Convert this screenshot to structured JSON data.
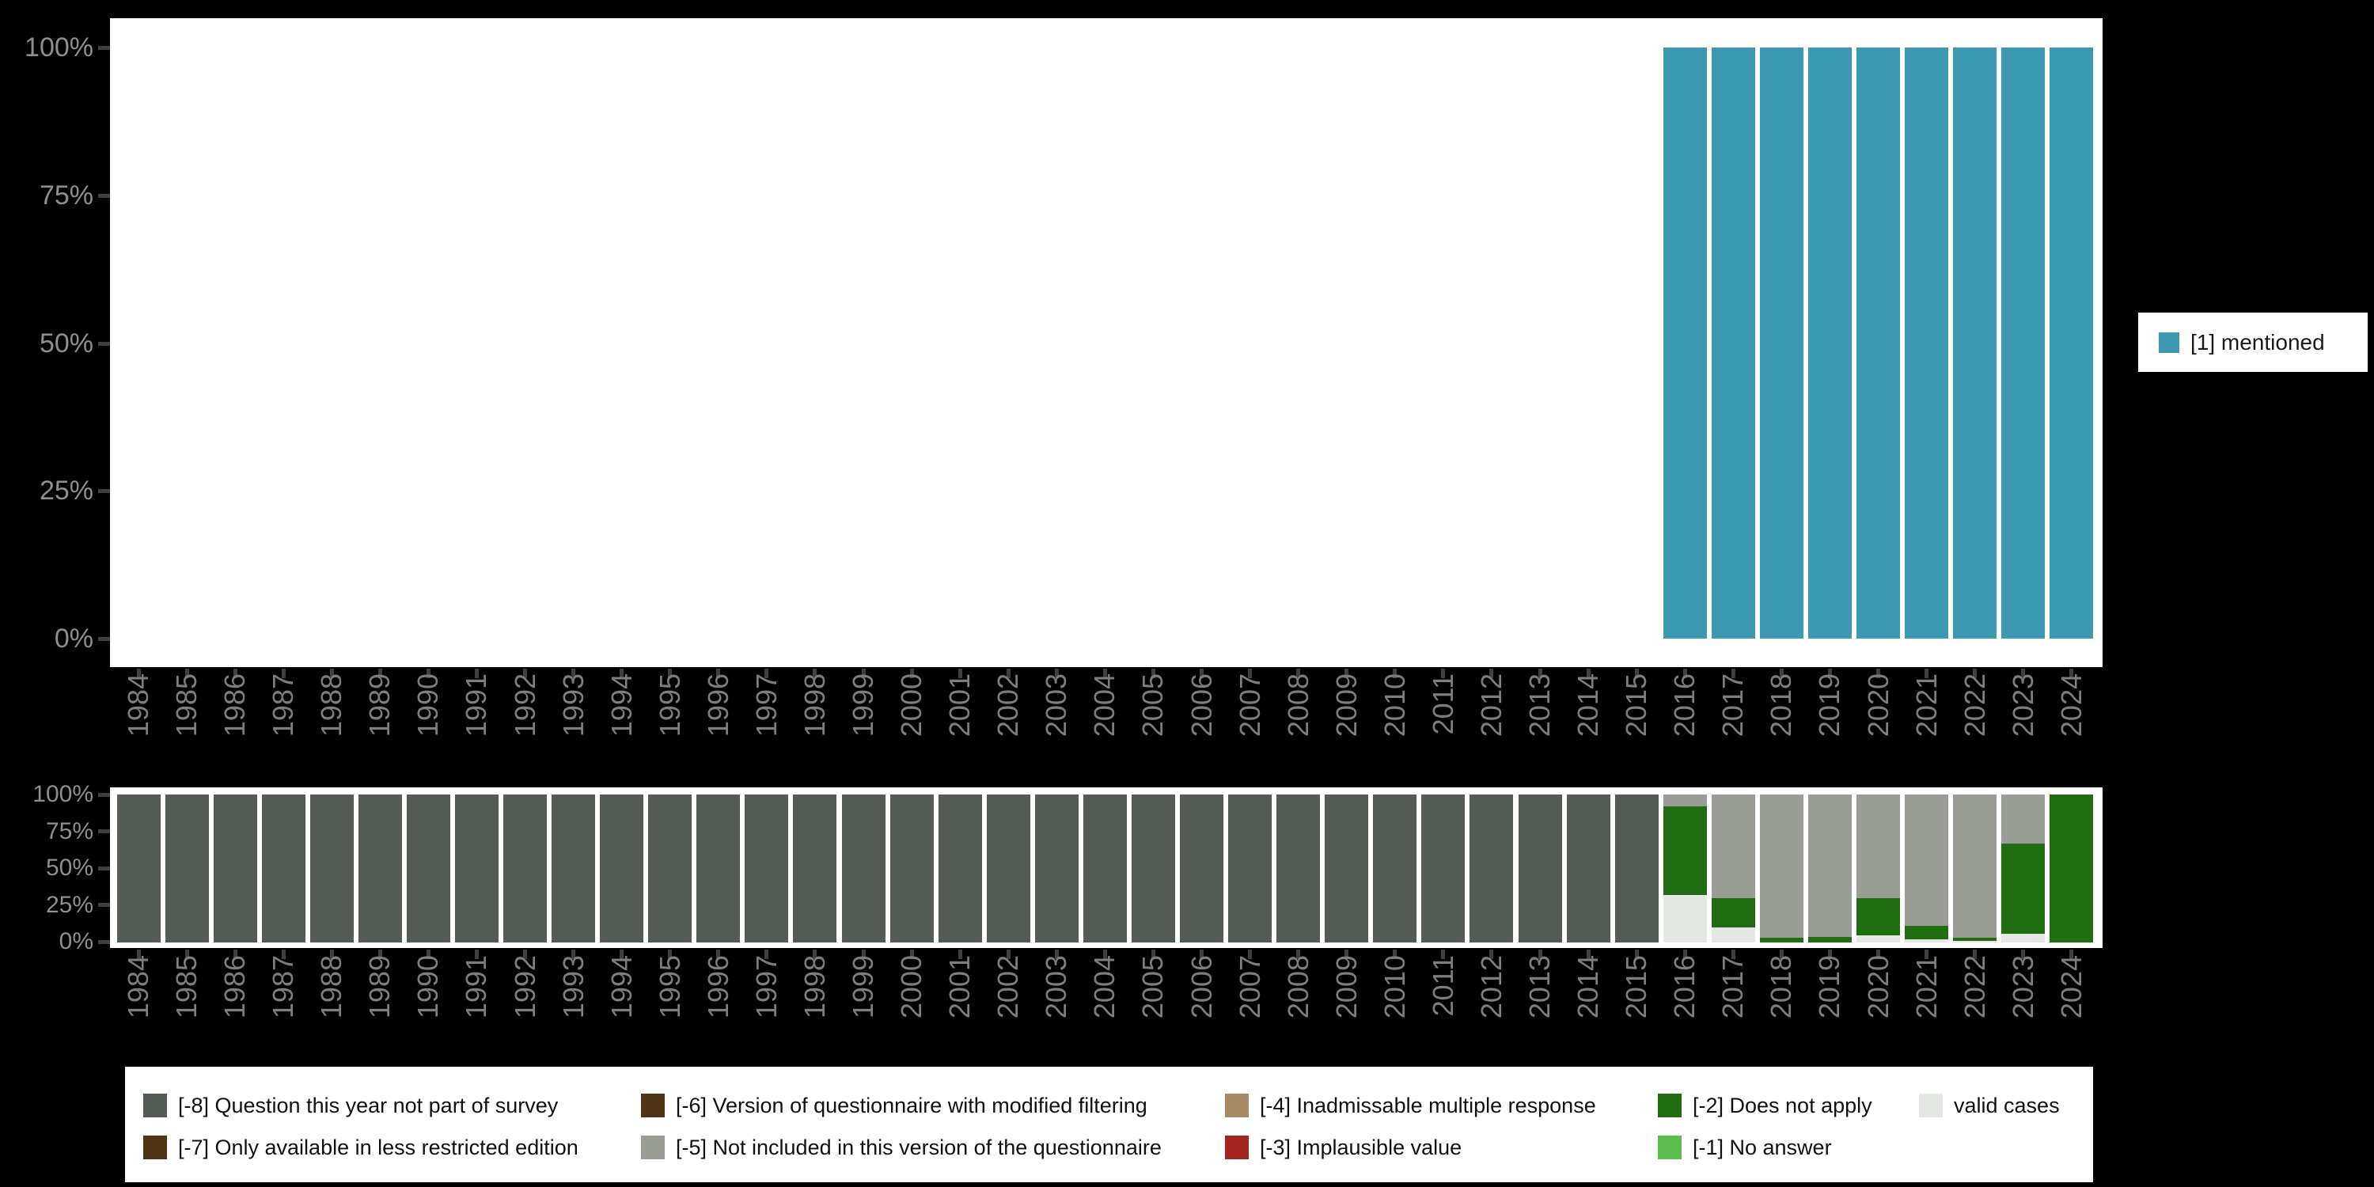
{
  "top_legend": {
    "label": "[1] mentioned",
    "color": "#3D98B2"
  },
  "axes": {
    "y_tick_labels": [
      "100%",
      "75%",
      "50%",
      "25%",
      "0%"
    ],
    "x_tick_labels": [
      "1984",
      "1985",
      "1986",
      "1987",
      "1988",
      "1989",
      "1990",
      "1991",
      "1992",
      "1993",
      "1994",
      "1995",
      "1996",
      "1997",
      "1998",
      "1999",
      "2000",
      "2001",
      "2002",
      "2003",
      "2004",
      "2005",
      "2006",
      "2007",
      "2008",
      "2009",
      "2010",
      "2011",
      "2012",
      "2013",
      "2014",
      "2015",
      "2016",
      "2017",
      "2018",
      "2019",
      "2020",
      "2021",
      "2022",
      "2023",
      "2024"
    ]
  },
  "chart_data": [
    {
      "type": "bar",
      "stacked": true,
      "unit": "percent",
      "title": "",
      "ylim": [
        0,
        100
      ],
      "yticks": [
        "0%",
        "25%",
        "50%",
        "75%",
        "100%"
      ],
      "legend_position": "right",
      "x": [
        1984,
        1985,
        1986,
        1987,
        1988,
        1989,
        1990,
        1991,
        1992,
        1993,
        1994,
        1995,
        1996,
        1997,
        1998,
        1999,
        2000,
        2001,
        2002,
        2003,
        2004,
        2005,
        2006,
        2007,
        2008,
        2009,
        2010,
        2011,
        2012,
        2013,
        2014,
        2015,
        2016,
        2017,
        2018,
        2019,
        2020,
        2021,
        2022,
        2023,
        2024
      ],
      "series": [
        {
          "name": "[1] mentioned",
          "color": "#3D98B2",
          "values": [
            0,
            0,
            0,
            0,
            0,
            0,
            0,
            0,
            0,
            0,
            0,
            0,
            0,
            0,
            0,
            0,
            0,
            0,
            0,
            0,
            0,
            0,
            0,
            0,
            0,
            0,
            0,
            0,
            0,
            0,
            0,
            0,
            100,
            100,
            100,
            100,
            100,
            100,
            100,
            100,
            100
          ]
        }
      ]
    },
    {
      "type": "bar",
      "stacked": true,
      "unit": "percent",
      "title": "",
      "ylim": [
        0,
        100
      ],
      "yticks": [
        "0%",
        "25%",
        "50%",
        "75%",
        "100%"
      ],
      "legend_position": "bottom",
      "x": [
        1984,
        1985,
        1986,
        1987,
        1988,
        1989,
        1990,
        1991,
        1992,
        1993,
        1994,
        1995,
        1996,
        1997,
        1998,
        1999,
        2000,
        2001,
        2002,
        2003,
        2004,
        2005,
        2006,
        2007,
        2008,
        2009,
        2010,
        2011,
        2012,
        2013,
        2014,
        2015,
        2016,
        2017,
        2018,
        2019,
        2020,
        2021,
        2022,
        2023,
        2024
      ],
      "series": [
        {
          "name": "[-8] Question this year not part of survey",
          "color": "#545B55",
          "values": [
            100,
            100,
            100,
            100,
            100,
            100,
            100,
            100,
            100,
            100,
            100,
            100,
            100,
            100,
            100,
            100,
            100,
            100,
            100,
            100,
            100,
            100,
            100,
            100,
            100,
            100,
            100,
            100,
            100,
            100,
            100,
            100,
            0,
            0,
            0,
            0,
            0,
            0,
            0,
            0,
            0
          ]
        },
        {
          "name": "[-5] Not included in this version of the questionnaire",
          "color": "#9A9D96",
          "values": [
            0,
            0,
            0,
            0,
            0,
            0,
            0,
            0,
            0,
            0,
            0,
            0,
            0,
            0,
            0,
            0,
            0,
            0,
            0,
            0,
            0,
            0,
            0,
            0,
            0,
            0,
            0,
            0,
            0,
            0,
            0,
            0,
            8,
            70,
            97,
            96,
            70,
            89,
            97,
            33,
            0
          ]
        },
        {
          "name": "[-2] Does not apply",
          "color": "#216D12",
          "values": [
            0,
            0,
            0,
            0,
            0,
            0,
            0,
            0,
            0,
            0,
            0,
            0,
            0,
            0,
            0,
            0,
            0,
            0,
            0,
            0,
            0,
            0,
            0,
            0,
            0,
            0,
            0,
            0,
            0,
            0,
            0,
            0,
            60,
            20,
            3,
            4,
            25,
            9,
            2,
            61,
            100
          ]
        },
        {
          "name": "valid cases",
          "color": "#E4E8E2",
          "values": [
            0,
            0,
            0,
            0,
            0,
            0,
            0,
            0,
            0,
            0,
            0,
            0,
            0,
            0,
            0,
            0,
            0,
            0,
            0,
            0,
            0,
            0,
            0,
            0,
            0,
            0,
            0,
            0,
            0,
            0,
            0,
            0,
            32,
            10,
            0,
            0,
            5,
            2,
            1,
            6,
            0
          ]
        }
      ]
    }
  ],
  "bottom_legend": {
    "columns": [
      [
        {
          "label": "[-8] Question this year not part of survey",
          "color": "#545B55"
        },
        {
          "label": "[-7] Only available in less restricted edition",
          "color": "#4E3516"
        }
      ],
      [
        {
          "label": "[-6] Version of questionnaire with modified filtering",
          "color": "#4E3516"
        },
        {
          "label": "[-5] Not included in this version of the questionnaire",
          "color": "#9A9D96"
        }
      ],
      [
        {
          "label": "[-4] Inadmissable multiple response",
          "color": "#A68B62"
        },
        {
          "label": "[-3] Implausible value",
          "color": "#A42520"
        }
      ],
      [
        {
          "label": "[-2] Does not apply",
          "color": "#216D12"
        },
        {
          "label": "[-1] No answer",
          "color": "#5CBE4D"
        }
      ],
      [
        {
          "label": "valid cases",
          "color": "#E4E8E2"
        }
      ]
    ]
  }
}
